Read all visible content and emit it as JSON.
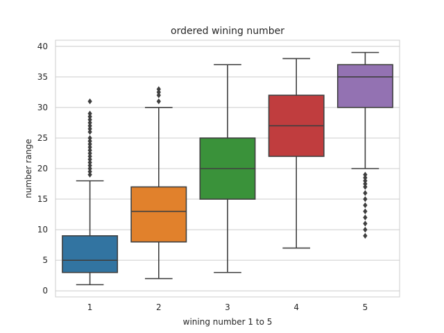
{
  "chart_data": {
    "type": "box",
    "title": "ordered wining number",
    "xlabel": "wining number 1 to 5",
    "ylabel": "number range",
    "categories": [
      "1",
      "2",
      "3",
      "4",
      "5"
    ],
    "ylim": [
      -1,
      41
    ],
    "yticks": [
      0,
      5,
      10,
      15,
      20,
      25,
      30,
      35,
      40
    ],
    "grid": "y",
    "colors": [
      "#3274a1",
      "#e1812c",
      "#3a923a",
      "#c03d3e",
      "#9372b2"
    ],
    "boxes": [
      {
        "whislo": 1,
        "q1": 3,
        "med": 5,
        "q3": 9,
        "whishi": 18,
        "fliers": [
          19,
          19.5,
          20,
          20.5,
          21,
          21.5,
          22,
          22.5,
          23,
          23.5,
          24,
          24.5,
          25,
          26,
          26.5,
          27,
          27.5,
          28,
          28.5,
          29,
          31
        ]
      },
      {
        "whislo": 2,
        "q1": 8,
        "med": 13,
        "q3": 17,
        "whishi": 30,
        "fliers": [
          31,
          32,
          32.5,
          33
        ]
      },
      {
        "whislo": 3,
        "q1": 15,
        "med": 20,
        "q3": 25,
        "whishi": 37,
        "fliers": []
      },
      {
        "whislo": 7,
        "q1": 22,
        "med": 27,
        "q3": 32,
        "whishi": 38,
        "fliers": []
      },
      {
        "whislo": 20,
        "q1": 30,
        "med": 35,
        "q3": 37,
        "whishi": 39,
        "fliers": [
          9,
          10,
          11,
          12,
          13,
          14,
          15,
          16,
          17,
          17.5,
          18,
          18.5,
          19
        ]
      }
    ]
  }
}
